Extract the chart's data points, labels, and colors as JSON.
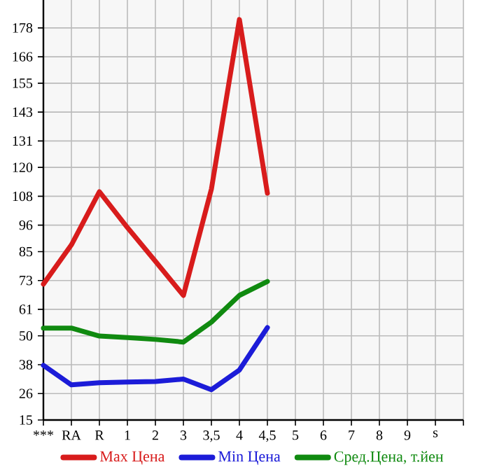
{
  "chart_data": {
    "type": "line",
    "categories": [
      "***",
      "RA",
      "R",
      "1",
      "2",
      "3",
      "3,5",
      "4",
      "4,5",
      "5",
      "6",
      "7",
      "8",
      "9",
      "s"
    ],
    "series": [
      {
        "name": "Max Цена",
        "color": "#d81c1c",
        "values": [
          71.5,
          87.8,
          109.9,
          95,
          81,
          66.8,
          111,
          181.5,
          109.3,
          null,
          null,
          null,
          null,
          null,
          null
        ]
      },
      {
        "name": "Min Цена",
        "color": "#1c1cd8",
        "values": [
          37.7,
          29.6,
          30.5,
          30.8,
          31,
          32,
          27.6,
          35.8,
          53.4,
          null,
          null,
          null,
          null,
          null,
          null
        ]
      },
      {
        "name": "Сред.Цена, т.йен",
        "color": "#108a10",
        "values": [
          53.2,
          53.2,
          49.9,
          49.3,
          48.5,
          47.4,
          55.7,
          66.8,
          72.6,
          null,
          null,
          null,
          null,
          null,
          null
        ]
      }
    ],
    "ylim": [
      15,
      189.6
    ],
    "yticks": [
      15,
      26,
      38,
      50,
      61,
      73,
      85,
      96,
      108,
      120,
      131,
      143,
      155,
      166,
      178
    ],
    "grid": true,
    "legend": "bottom",
    "marker": "none",
    "line_style": "solid"
  }
}
